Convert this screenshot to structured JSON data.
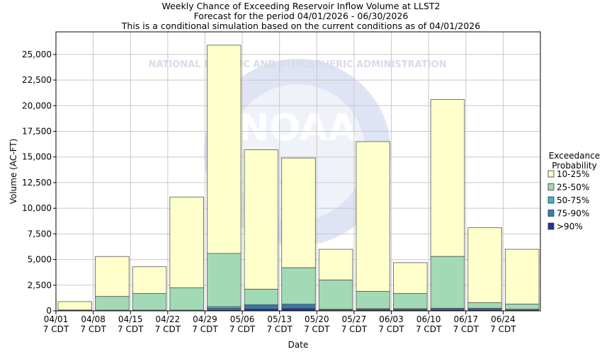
{
  "title_lines": [
    "Weekly Chance of Exceeding Reservoir Inflow Volume at LLST2",
    "Forecast for the period 04/01/2026 - 06/30/2026",
    "This is a conditional simulation based on the current conditions as of 04/01/2026"
  ],
  "watermark": {
    "logo_text": "NOAA",
    "ring_text": "NATIONAL OCEANIC AND ATMOSPHERIC ADMINISTRATION"
  },
  "legend": {
    "title_lines": [
      "Exceedance",
      "Probability"
    ],
    "items": [
      {
        "label": "10-25%",
        "color": "#ffffcc"
      },
      {
        "label": "25-50%",
        "color": "#a1dab4"
      },
      {
        "label": "50-75%",
        "color": "#41b6c4"
      },
      {
        "label": "75-90%",
        "color": "#2c7fb8"
      },
      {
        "label": ">90%",
        "color": "#253494"
      }
    ]
  },
  "chart_data": {
    "type": "bar",
    "stacked": true,
    "xlabel": "Date",
    "ylabel": "Volume (AC-FT)",
    "ylim": [
      0,
      27200
    ],
    "yticks": [
      0,
      2500,
      5000,
      7500,
      10000,
      12500,
      15000,
      17500,
      20000,
      22500,
      25000
    ],
    "ytick_labels": [
      "0",
      "2,500",
      "5,000",
      "7,500",
      "10,000",
      "12,500",
      "15,000",
      "17,500",
      "20,000",
      "22,500",
      "25,000"
    ],
    "categories": [
      "04/01",
      "04/08",
      "04/15",
      "04/22",
      "04/29",
      "05/06",
      "05/13",
      "05/20",
      "05/27",
      "06/03",
      "06/10",
      "06/17",
      "06/24"
    ],
    "category_sublabel": "7 CDT",
    "boundaries": {
      "10%": [
        900,
        5300,
        4300,
        11100,
        25900,
        15700,
        14900,
        6000,
        16500,
        4700,
        20600,
        8100,
        6000
      ],
      "25%": [
        80,
        1400,
        1700,
        2250,
        5600,
        2100,
        4200,
        3000,
        1900,
        1700,
        5300,
        800,
        650
      ],
      "50%": [
        30,
        60,
        60,
        60,
        400,
        600,
        650,
        150,
        200,
        200,
        250,
        250,
        150
      ],
      "75%": [
        20,
        40,
        40,
        40,
        250,
        500,
        550,
        100,
        150,
        150,
        200,
        200,
        100
      ],
      "90%": [
        10,
        20,
        20,
        20,
        100,
        200,
        250,
        50,
        80,
        80,
        100,
        100,
        50
      ]
    },
    "grid": true,
    "legend_position": "right"
  }
}
